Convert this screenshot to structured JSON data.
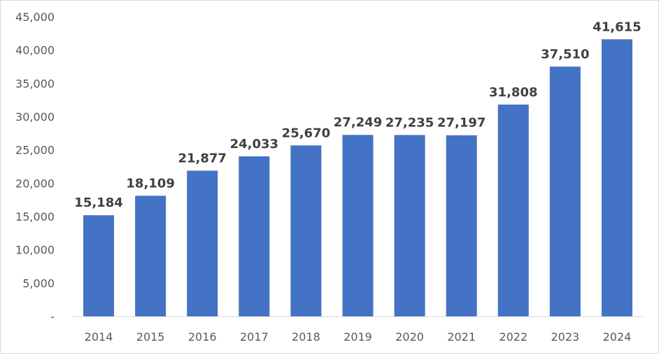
{
  "chart_data": {
    "type": "bar",
    "categories": [
      "2014",
      "2015",
      "2016",
      "2017",
      "2018",
      "2019",
      "2020",
      "2021",
      "2022",
      "2023",
      "2024"
    ],
    "values": [
      15184,
      18109,
      21877,
      24033,
      25670,
      27249,
      27235,
      27197,
      31808,
      37510,
      41615
    ],
    "data_labels": [
      "15,184",
      "18,109",
      "21,877",
      "24,033",
      "25,670",
      "27,249",
      "27,235",
      "27,197",
      "31,808",
      "37,510",
      "41,615"
    ],
    "y_ticks": [
      "-",
      "5,000",
      "10,000",
      "15,000",
      "20,000",
      "25,000",
      "30,000",
      "35,000",
      "40,000",
      "45,000"
    ],
    "ylim": [
      0,
      45000
    ],
    "y_step": 5000,
    "grid": false,
    "legend": "none",
    "bar_color": "#4472c4",
    "axis_color": "#d9d9d9"
  }
}
